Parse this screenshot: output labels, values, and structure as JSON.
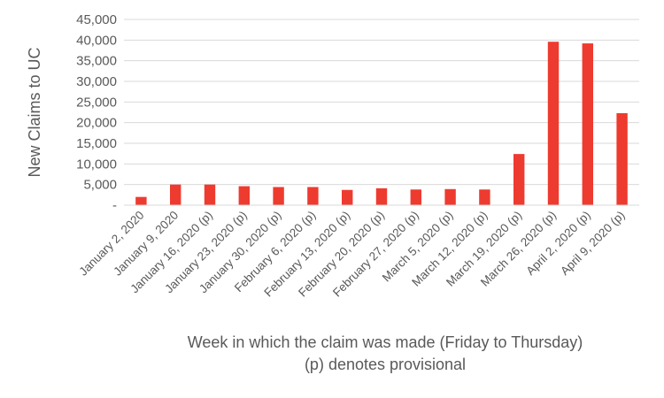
{
  "chart_data": {
    "type": "bar",
    "title": "",
    "xlabel": "Week in which the claim was made (Friday to Thursday)",
    "xlabel_line2": "(p) denotes provisional",
    "ylabel": "New Claims to UC",
    "ylim": [
      0,
      45000
    ],
    "yticks": [
      0,
      5000,
      10000,
      15000,
      20000,
      25000,
      30000,
      35000,
      40000,
      45000
    ],
    "ytick_labels": [
      "-",
      "5,000",
      "10,000",
      "15,000",
      "20,000",
      "25,000",
      "30,000",
      "35,000",
      "40,000",
      "45,000"
    ],
    "grid": true,
    "legend": "none",
    "bar_color": "#ee3b2f",
    "categories": [
      "January 2, 2020",
      "January 9, 2020",
      "January 16, 2020 (p)",
      "January 23, 2020 (p)",
      "January 30, 2020 (p)",
      "February 6, 2020 (p)",
      "February 13, 2020 (p)",
      "February 20, 2020 (p)",
      "February 27, 2020 (p)",
      "March 5, 2020 (p)",
      "March 12, 2020 (p)",
      "March 19, 2020 (p)",
      "March 26, 2020 (p)",
      "April 2, 2020 (p)",
      "April 9, 2020 (p)"
    ],
    "values": [
      2000,
      5000,
      5000,
      4600,
      4400,
      4400,
      3700,
      4100,
      3800,
      3900,
      3800,
      12400,
      39600,
      39200,
      22300
    ]
  }
}
